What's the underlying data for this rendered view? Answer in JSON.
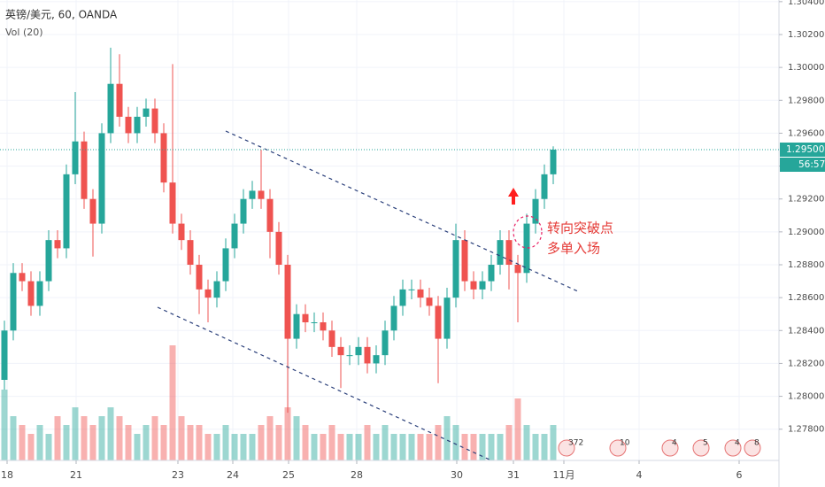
{
  "chart_data": {
    "type": "candlestick",
    "title": "英镑/美元, 60, OANDA",
    "subtitle": "Vol (20)",
    "x": [
      0,
      1,
      2,
      3,
      4,
      5,
      6,
      7,
      8,
      9,
      10,
      11,
      12,
      13,
      14,
      15,
      16,
      17,
      18,
      19,
      20,
      21,
      22,
      23,
      24,
      25,
      26,
      27,
      28,
      29,
      30,
      31,
      32,
      33,
      34,
      35,
      36,
      37,
      38,
      39,
      40,
      41,
      42,
      43,
      44,
      45,
      46,
      47,
      48,
      49,
      50,
      51,
      52,
      53,
      54,
      55,
      56,
      57,
      58,
      59,
      60,
      61,
      62
    ],
    "open": [
      1.281,
      1.284,
      1.2875,
      1.287,
      1.2855,
      1.287,
      1.2895,
      1.289,
      1.2935,
      1.2955,
      1.292,
      1.2905,
      1.296,
      1.299,
      1.297,
      1.296,
      1.297,
      1.2975,
      1.296,
      1.293,
      1.2905,
      1.2895,
      1.288,
      1.2865,
      1.286,
      1.287,
      1.289,
      1.2905,
      1.292,
      1.2925,
      1.292,
      1.29,
      1.288,
      1.2835,
      1.285,
      1.2845,
      1.2845,
      1.284,
      1.283,
      1.2825,
      1.2825,
      1.283,
      1.282,
      1.2825,
      1.284,
      1.2855,
      1.2865,
      1.2865,
      1.286,
      1.2855,
      1.2835,
      1.286,
      1.2895,
      1.287,
      1.2865,
      1.287,
      1.288,
      1.2895,
      1.288,
      1.2875,
      1.2905,
      1.292,
      1.2935
    ],
    "high": [
      1.2846,
      1.2881,
      1.2881,
      1.2876,
      1.2876,
      1.2901,
      1.2901,
      1.2941,
      1.2985,
      1.2961,
      1.2926,
      1.2966,
      1.3012,
      1.3008,
      1.2976,
      1.2976,
      1.2981,
      1.2981,
      1.2966,
      1.3002,
      1.2911,
      1.2901,
      1.2886,
      1.2871,
      1.2876,
      1.2896,
      1.2911,
      1.2926,
      1.2931,
      1.295,
      1.2926,
      1.2906,
      1.2886,
      1.2856,
      1.2856,
      1.2851,
      1.2851,
      1.2846,
      1.2836,
      1.2831,
      1.2836,
      1.2836,
      1.2831,
      1.2846,
      1.2861,
      1.2871,
      1.2871,
      1.2871,
      1.2866,
      1.2861,
      1.2866,
      1.2905,
      1.2901,
      1.2876,
      1.2876,
      1.2886,
      1.2901,
      1.2901,
      1.2886,
      1.2911,
      1.2926,
      1.2941,
      1.2952
    ],
    "low": [
      1.2804,
      1.2834,
      1.2864,
      1.2849,
      1.2849,
      1.2864,
      1.2884,
      1.2884,
      1.2929,
      1.2914,
      1.2885,
      1.2899,
      1.2954,
      1.2964,
      1.2954,
      1.2954,
      1.2964,
      1.2954,
      1.2924,
      1.2899,
      1.2889,
      1.2874,
      1.285,
      1.2845,
      1.2854,
      1.2864,
      1.2884,
      1.2899,
      1.2914,
      1.2914,
      1.2884,
      1.2874,
      1.279,
      1.2829,
      1.2839,
      1.2839,
      1.2834,
      1.2824,
      1.2805,
      1.2819,
      1.2819,
      1.2814,
      1.2814,
      1.2819,
      1.2834,
      1.2849,
      1.2859,
      1.2854,
      1.2849,
      1.2808,
      1.2829,
      1.2854,
      1.2864,
      1.2859,
      1.2859,
      1.2864,
      1.2874,
      1.2865,
      1.2845,
      1.2869,
      1.2899,
      1.2914,
      1.2929
    ],
    "close": [
      1.284,
      1.2875,
      1.287,
      1.2855,
      1.287,
      1.2895,
      1.289,
      1.2935,
      1.2955,
      1.292,
      1.2905,
      1.296,
      1.299,
      1.297,
      1.296,
      1.297,
      1.2975,
      1.296,
      1.293,
      1.2905,
      1.2895,
      1.288,
      1.2865,
      1.286,
      1.287,
      1.289,
      1.2905,
      1.292,
      1.2925,
      1.292,
      1.29,
      1.288,
      1.2835,
      1.285,
      1.2845,
      1.2845,
      1.284,
      1.283,
      1.2825,
      1.2825,
      1.283,
      1.282,
      1.2825,
      1.284,
      1.2855,
      1.2865,
      1.2865,
      1.286,
      1.2855,
      1.2835,
      1.286,
      1.2895,
      1.287,
      1.2865,
      1.287,
      1.288,
      1.2895,
      1.288,
      1.2875,
      1.2905,
      1.292,
      1.2935,
      1.295
    ],
    "volume": [
      8,
      5,
      4,
      3,
      4,
      3,
      5,
      4,
      6,
      5,
      4,
      5,
      6,
      5,
      4,
      3,
      4,
      5,
      4,
      13,
      5,
      4,
      4,
      3,
      3,
      4,
      3,
      3,
      3,
      4,
      5,
      4,
      6,
      5,
      4,
      3,
      3,
      4,
      3,
      3,
      3,
      4,
      3,
      4,
      3,
      3,
      3,
      3,
      3,
      4,
      5,
      4,
      3,
      3,
      3,
      3,
      3,
      4,
      7,
      4,
      3,
      3,
      4
    ],
    "up_color": "#26a69a",
    "down_color": "#ef5350",
    "xlim": [
      -0.5,
      87.5
    ],
    "ylim": [
      1.2761,
      1.3041
    ],
    "xticks": [
      {
        "value": 0.3,
        "label": "18"
      },
      {
        "value": 8.1,
        "label": "21"
      },
      {
        "value": 19.6,
        "label": "23"
      },
      {
        "value": 25.8,
        "label": "24"
      },
      {
        "value": 32.1,
        "label": "25"
      },
      {
        "value": 39.8,
        "label": "28"
      },
      {
        "value": 51.1,
        "label": "30"
      },
      {
        "value": 57.5,
        "label": "31"
      },
      {
        "value": 63.2,
        "label": "11月"
      },
      {
        "value": 71.7,
        "label": "4"
      },
      {
        "value": 83,
        "label": "6"
      }
    ],
    "yticks": [
      {
        "value": 1.278,
        "label": "1.27800"
      },
      {
        "value": 1.28,
        "label": "1.28000"
      },
      {
        "value": 1.282,
        "label": "1.28200"
      },
      {
        "value": 1.284,
        "label": "1.28400"
      },
      {
        "value": 1.286,
        "label": "1.28600"
      },
      {
        "value": 1.288,
        "label": "1.28800"
      },
      {
        "value": 1.29,
        "label": "1.29000"
      },
      {
        "value": 1.292,
        "label": "1.29200"
      },
      {
        "value": 1.294,
        "label": "1.29400"
      },
      {
        "value": 1.296,
        "label": "1.29600"
      },
      {
        "value": 1.298,
        "label": "1.29800"
      },
      {
        "value": 1.3,
        "label": "1.30000"
      },
      {
        "value": 1.302,
        "label": "1.30200"
      },
      {
        "value": 1.304,
        "label": "1.30400"
      }
    ],
    "grid": true,
    "last_price": {
      "value": 1.295,
      "label": "1.29500"
    },
    "countdown": "56:57",
    "annotations": [
      "转向突破点",
      "多单入场"
    ],
    "events": [
      "372",
      "10",
      "4",
      "5",
      "4",
      "8"
    ]
  }
}
